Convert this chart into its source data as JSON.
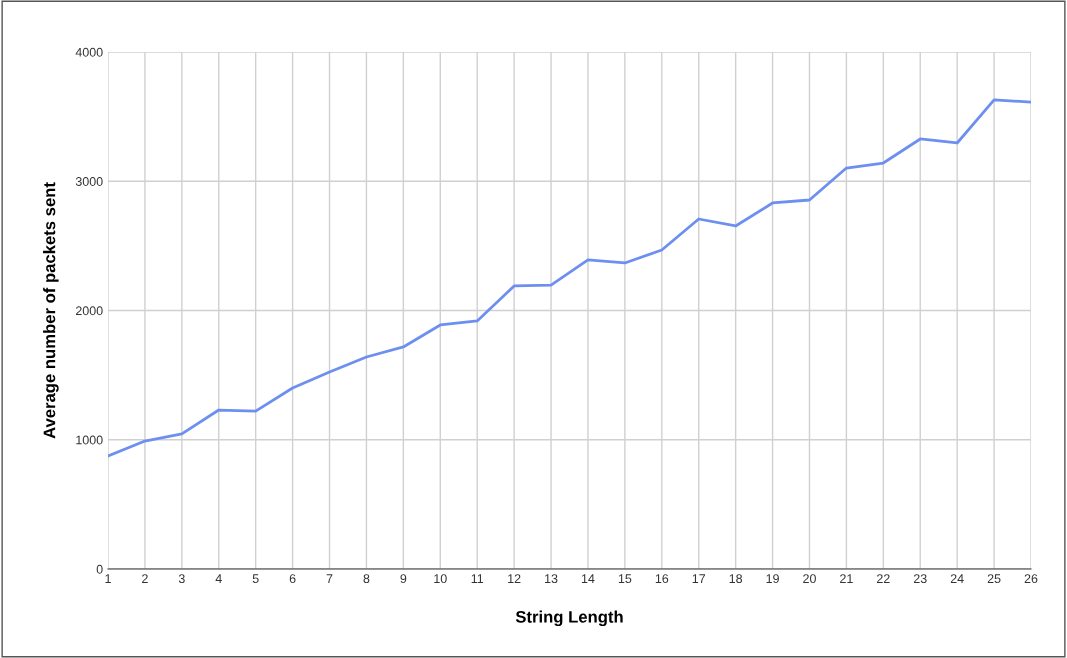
{
  "chart_data": {
    "type": "line",
    "xlabel": "String Length",
    "ylabel": "Average number of packets sent",
    "x": [
      1,
      2,
      3,
      4,
      5,
      6,
      7,
      8,
      9,
      10,
      11,
      12,
      13,
      14,
      15,
      16,
      17,
      18,
      19,
      20,
      21,
      22,
      23,
      24,
      25,
      26
    ],
    "series": [
      {
        "color": "#6d8ff0",
        "values": [
          875,
          990,
          1045,
          1230,
          1222,
          1400,
          1524,
          1640,
          1718,
          1888,
          1919,
          2190,
          2197,
          2391,
          2368,
          2468,
          2708,
          2654,
          2832,
          2855,
          3102,
          3141,
          3327,
          3296,
          3629,
          3613
        ]
      }
    ],
    "xlim": [
      1,
      26
    ],
    "xticks": [
      1,
      2,
      3,
      4,
      5,
      6,
      7,
      8,
      9,
      10,
      11,
      12,
      13,
      14,
      15,
      16,
      17,
      18,
      19,
      20,
      21,
      22,
      23,
      24,
      25,
      26
    ],
    "ylim": [
      0,
      4000
    ],
    "yticks": [
      0,
      1000,
      2000,
      3000,
      4000
    ],
    "grid": true,
    "marker": "none",
    "line_style": "solid"
  }
}
